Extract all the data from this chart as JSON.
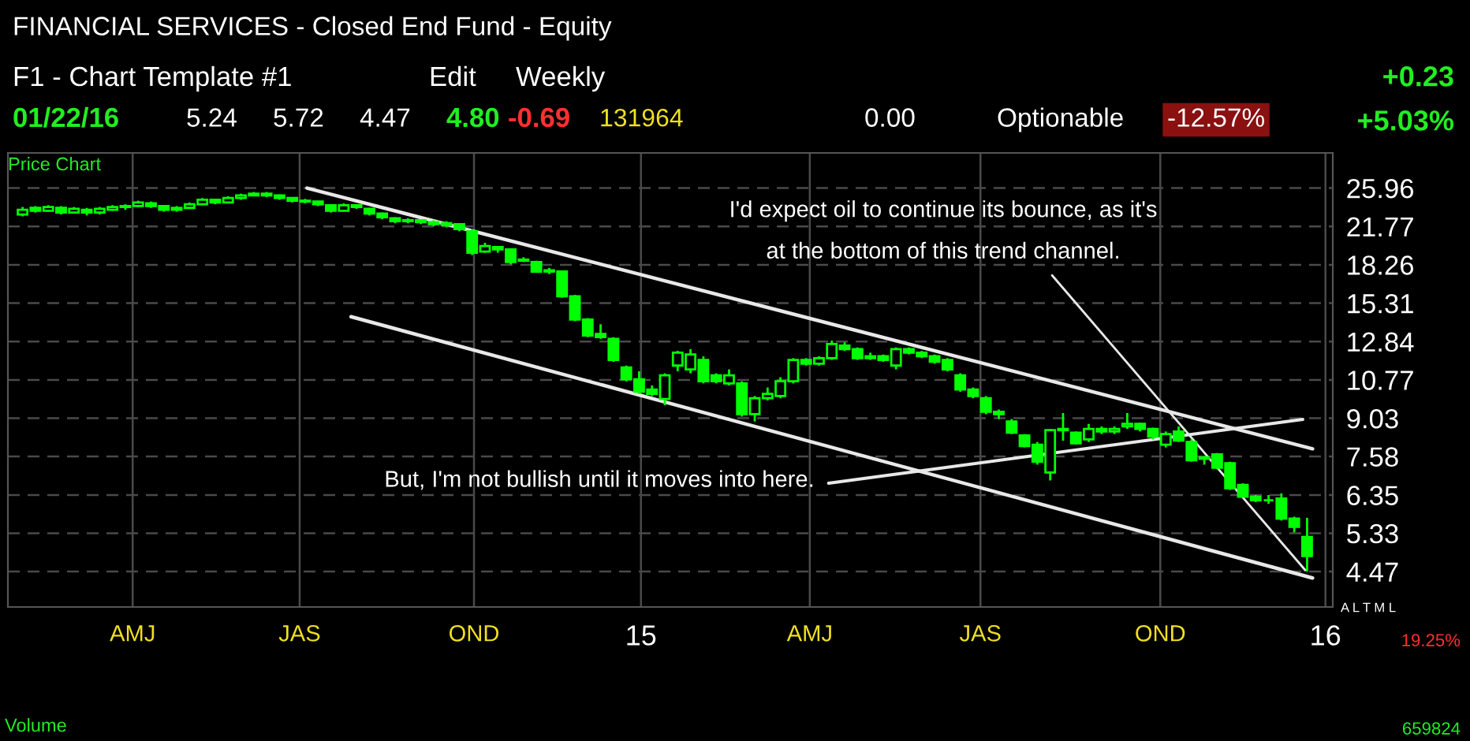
{
  "chart_data": {
    "type": "candlestick",
    "title": "FINANCIAL SERVICES - Closed End Fund - Equity",
    "color": "#00ff00",
    "x": [
      "2014-02-21",
      "2014-02-28",
      "2014-03-07",
      "2014-03-14",
      "2014-03-21",
      "2014-03-28",
      "2014-04-04",
      "2014-04-11",
      "2014-04-18",
      "2014-04-25",
      "2014-05-02",
      "2014-05-09",
      "2014-05-16",
      "2014-05-23",
      "2014-05-30",
      "2014-06-06",
      "2014-06-13",
      "2014-06-20",
      "2014-06-27",
      "2014-07-04",
      "2014-07-11",
      "2014-07-18",
      "2014-07-25",
      "2014-08-01",
      "2014-08-08",
      "2014-08-15",
      "2014-08-22",
      "2014-08-29",
      "2014-09-05",
      "2014-09-12",
      "2014-09-19",
      "2014-09-26",
      "2014-10-03",
      "2014-10-10",
      "2014-10-17",
      "2014-10-24",
      "2014-10-31",
      "2014-11-07",
      "2014-11-14",
      "2014-11-21",
      "2014-11-28",
      "2014-12-05",
      "2014-12-12",
      "2014-12-19",
      "2014-12-26",
      "2015-01-02",
      "2015-01-09",
      "2015-01-16",
      "2015-01-23",
      "2015-01-30",
      "2015-02-06",
      "2015-02-13",
      "2015-02-20",
      "2015-02-27",
      "2015-03-06",
      "2015-03-13",
      "2015-03-20",
      "2015-03-27",
      "2015-04-03",
      "2015-04-10",
      "2015-04-17",
      "2015-04-24",
      "2015-05-01",
      "2015-05-08",
      "2015-05-15",
      "2015-05-22",
      "2015-05-29",
      "2015-06-05",
      "2015-06-12",
      "2015-06-19",
      "2015-06-26",
      "2015-07-03",
      "2015-07-10",
      "2015-07-17",
      "2015-07-24",
      "2015-07-31",
      "2015-08-07",
      "2015-08-14",
      "2015-08-21",
      "2015-08-28",
      "2015-09-04",
      "2015-09-11",
      "2015-09-18",
      "2015-09-25",
      "2015-10-02",
      "2015-10-09",
      "2015-10-16",
      "2015-10-23",
      "2015-10-30",
      "2015-11-06",
      "2015-11-13",
      "2015-11-20",
      "2015-11-27",
      "2015-12-04",
      "2015-12-11",
      "2015-12-18",
      "2015-12-25",
      "2016-01-01",
      "2016-01-08",
      "2016-01-15",
      "2016-01-22"
    ],
    "ohlc": [
      [
        23.0,
        23.8,
        22.8,
        23.5
      ],
      [
        23.7,
        23.9,
        23.2,
        23.4
      ],
      [
        23.4,
        24.0,
        23.3,
        23.8
      ],
      [
        23.7,
        23.9,
        23.0,
        23.2
      ],
      [
        23.2,
        23.8,
        23.1,
        23.6
      ],
      [
        23.5,
        23.7,
        22.9,
        23.2
      ],
      [
        23.2,
        23.8,
        23.0,
        23.6
      ],
      [
        23.5,
        24.0,
        23.4,
        23.8
      ],
      [
        23.8,
        24.1,
        23.5,
        23.9
      ],
      [
        23.9,
        24.5,
        23.8,
        24.3
      ],
      [
        24.2,
        24.4,
        23.7,
        23.9
      ],
      [
        23.9,
        24.0,
        23.3,
        23.5
      ],
      [
        23.5,
        23.9,
        23.3,
        23.7
      ],
      [
        23.7,
        24.3,
        23.6,
        24.1
      ],
      [
        24.1,
        24.8,
        24.0,
        24.6
      ],
      [
        24.6,
        24.7,
        24.1,
        24.3
      ],
      [
        24.3,
        25.0,
        24.2,
        24.8
      ],
      [
        24.8,
        25.3,
        24.6,
        25.1
      ],
      [
        25.1,
        25.5,
        25.0,
        25.3
      ],
      [
        25.3,
        25.5,
        24.9,
        25.1
      ],
      [
        25.1,
        25.2,
        24.6,
        24.8
      ],
      [
        24.8,
        24.9,
        24.3,
        24.5
      ],
      [
        24.5,
        24.7,
        24.2,
        24.4
      ],
      [
        24.4,
        24.5,
        23.9,
        24.1
      ],
      [
        24.0,
        24.1,
        23.2,
        23.4
      ],
      [
        23.4,
        24.2,
        23.3,
        24.0
      ],
      [
        24.0,
        24.1,
        23.6,
        23.8
      ],
      [
        23.6,
        23.7,
        22.9,
        23.1
      ],
      [
        23.1,
        23.2,
        22.5,
        22.7
      ],
      [
        22.6,
        22.7,
        22.1,
        22.3
      ],
      [
        22.3,
        22.6,
        22.1,
        22.4
      ],
      [
        22.4,
        22.5,
        22.0,
        22.2
      ],
      [
        22.2,
        22.4,
        21.8,
        22.0
      ],
      [
        21.9,
        22.3,
        21.7,
        22.1
      ],
      [
        22.0,
        22.1,
        21.3,
        21.5
      ],
      [
        21.3,
        21.5,
        19.1,
        19.3
      ],
      [
        19.4,
        20.2,
        19.3,
        19.9
      ],
      [
        19.8,
        19.9,
        19.3,
        19.6
      ],
      [
        19.6,
        19.7,
        18.3,
        18.5
      ],
      [
        18.6,
        18.9,
        18.5,
        18.7
      ],
      [
        18.5,
        18.6,
        17.6,
        17.7
      ],
      [
        17.8,
        18.0,
        17.5,
        17.7
      ],
      [
        17.7,
        17.8,
        15.7,
        15.8
      ],
      [
        15.8,
        15.9,
        14.1,
        14.2
      ],
      [
        14.2,
        14.3,
        13.1,
        13.2
      ],
      [
        13.3,
        13.9,
        13.0,
        13.1
      ],
      [
        13.0,
        13.1,
        11.7,
        11.8
      ],
      [
        11.4,
        11.5,
        10.7,
        10.8
      ],
      [
        10.8,
        11.2,
        10.1,
        10.2
      ],
      [
        10.3,
        10.5,
        10.0,
        10.1
      ],
      [
        9.87,
        11.1,
        9.59,
        11.0
      ],
      [
        11.5,
        12.3,
        11.2,
        12.2
      ],
      [
        11.3,
        12.4,
        11.1,
        12.1
      ],
      [
        11.8,
        12.0,
        10.6,
        10.7
      ],
      [
        11.0,
        11.1,
        10.6,
        10.7
      ],
      [
        10.6,
        11.3,
        10.5,
        11.0
      ],
      [
        10.6,
        10.7,
        9.1,
        9.2
      ],
      [
        9.2,
        10.0,
        8.9,
        9.9
      ],
      [
        9.9,
        10.4,
        9.8,
        10.1
      ],
      [
        10.0,
        10.9,
        9.9,
        10.7
      ],
      [
        10.7,
        11.9,
        10.6,
        11.8
      ],
      [
        11.8,
        11.9,
        11.5,
        11.6
      ],
      [
        11.6,
        12.0,
        11.5,
        11.9
      ],
      [
        11.9,
        12.9,
        11.8,
        12.7
      ],
      [
        12.6,
        12.8,
        12.3,
        12.4
      ],
      [
        12.4,
        12.5,
        11.8,
        11.9
      ],
      [
        11.9,
        12.2,
        11.8,
        12.0
      ],
      [
        12.0,
        12.1,
        11.7,
        11.8
      ],
      [
        11.5,
        12.5,
        11.3,
        12.4
      ],
      [
        12.4,
        12.5,
        12.1,
        12.2
      ],
      [
        12.2,
        12.3,
        11.9,
        12.0
      ],
      [
        12.0,
        12.1,
        11.6,
        11.7
      ],
      [
        11.8,
        11.9,
        11.2,
        11.3
      ],
      [
        11.0,
        11.1,
        10.2,
        10.3
      ],
      [
        10.3,
        10.4,
        9.9,
        10.0
      ],
      [
        9.9,
        10.0,
        9.2,
        9.3
      ],
      [
        9.3,
        9.4,
        9.0,
        9.2
      ],
      [
        8.9,
        9.0,
        8.4,
        8.45
      ],
      [
        8.35,
        8.4,
        7.9,
        7.95
      ],
      [
        8.0,
        8.1,
        7.3,
        7.4
      ],
      [
        7.04,
        8.6,
        6.79,
        8.55
      ],
      [
        8.55,
        9.25,
        8.15,
        8.6
      ],
      [
        8.45,
        8.5,
        8.0,
        8.05
      ],
      [
        8.2,
        8.8,
        8.1,
        8.6
      ],
      [
        8.6,
        8.7,
        8.4,
        8.5
      ],
      [
        8.5,
        8.7,
        8.4,
        8.6
      ],
      [
        8.7,
        9.25,
        8.6,
        8.8
      ],
      [
        8.8,
        8.85,
        8.5,
        8.6
      ],
      [
        8.6,
        8.65,
        8.2,
        8.3
      ],
      [
        8.0,
        8.5,
        7.9,
        8.4
      ],
      [
        8.5,
        8.7,
        8.1,
        8.15
      ],
      [
        8.1,
        8.2,
        7.4,
        7.45
      ],
      [
        7.5,
        7.6,
        7.3,
        7.55
      ],
      [
        7.65,
        7.7,
        7.15,
        7.2
      ],
      [
        7.35,
        7.4,
        6.5,
        6.55
      ],
      [
        6.65,
        6.7,
        6.3,
        6.3
      ],
      [
        6.3,
        6.35,
        6.15,
        6.2
      ],
      [
        6.2,
        6.35,
        6.1,
        6.2
      ],
      [
        6.25,
        6.4,
        5.65,
        5.7
      ],
      [
        5.7,
        5.75,
        5.35,
        5.49
      ],
      [
        5.24,
        5.72,
        4.47,
        4.8
      ]
    ],
    "series": [
      {
        "type": "line",
        "color": "#e8e8e8",
        "x": [
          "2014-07-26",
          "2016-01-25"
        ],
        "values": [
          25.96,
          7.85
        ]
      },
      {
        "type": "line",
        "color": "#e8e8e8",
        "x": [
          "2014-08-19",
          "2016-01-25"
        ],
        "values": [
          14.39,
          4.34
        ]
      }
    ],
    "log": "y",
    "ylim": [
      3.8,
      30.5
    ],
    "yticks": [
      25.96,
      21.77,
      18.26,
      15.31,
      12.84,
      10.77,
      9.03,
      7.58,
      6.35,
      5.33,
      4.47
    ],
    "xlim": [
      "2014-02-13",
      "2016-02-05"
    ],
    "xticks": [
      {
        "value": "2014-04-22",
        "label": "AMJ"
      },
      {
        "value": "2014-07-22",
        "label": "JAS"
      },
      {
        "value": "2014-10-25",
        "label": "OND"
      },
      {
        "value": "2015-01-24",
        "label": "15"
      },
      {
        "value": "2015-04-26",
        "label": "AMJ"
      },
      {
        "value": "2015-07-28",
        "label": "JAS"
      },
      {
        "value": "2015-11-03",
        "label": "OND"
      },
      {
        "value": "2016-02-01",
        "label": "16"
      }
    ],
    "grid": true,
    "annotations": [
      "F1 - Chart Template #1",
      "Edit",
      "Weekly",
      "01/22/16",
      "5.24",
      "5.72",
      "4.47",
      "4.80",
      "-0.69",
      "131964",
      "0.00",
      "Optionable",
      "-12.57%",
      "+0.23",
      "+5.03%",
      "Price Chart",
      "Volume",
      "A L T M L",
      "19.25%",
      "659824",
      {
        "text": "I'd expect oil to continue its bounce, as it's\nat the bottom of this trend channel.",
        "x": "2016-01-21",
        "y": 4.5
      },
      "But, I'm not bullish until it moves into here."
    ]
  }
}
